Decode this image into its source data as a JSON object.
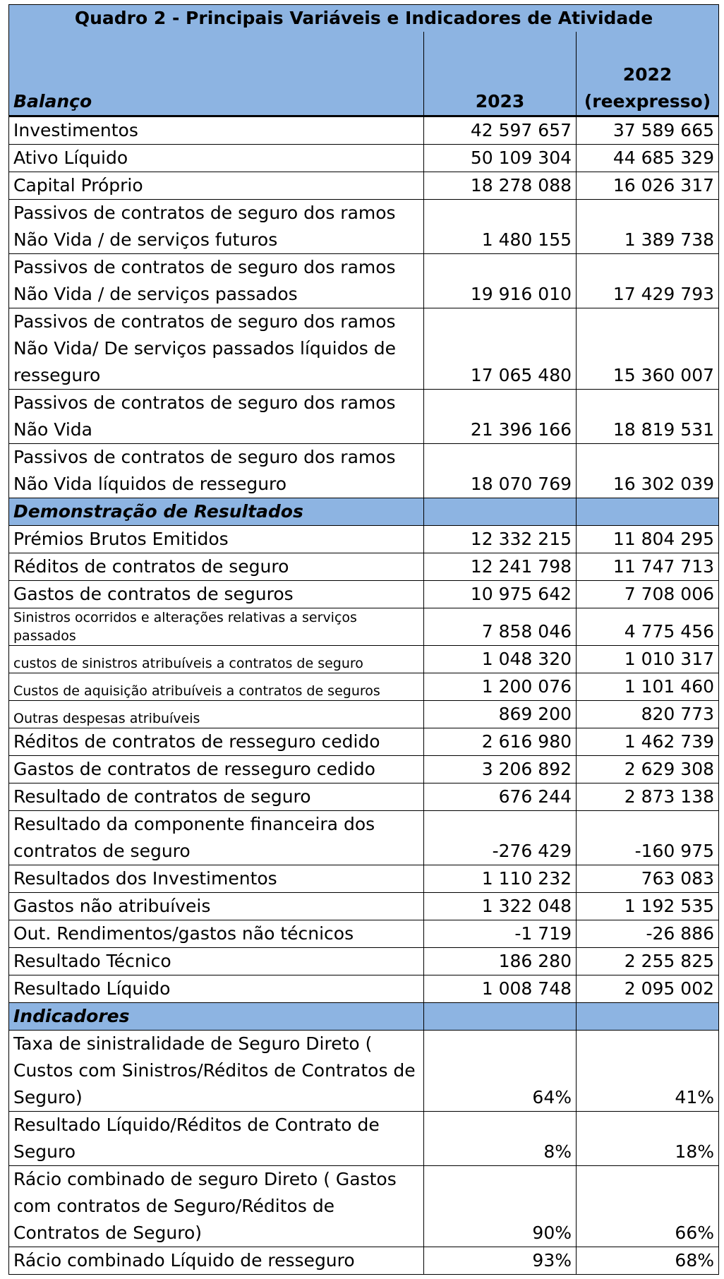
{
  "title": "Quadro 2 - Principais Variáveis e Indicadores de Atividade",
  "columns": {
    "y2023": "2023",
    "y2022_line1": "2022",
    "y2022_line2": "(reexpresso)"
  },
  "sections": {
    "balanco": "Balanço",
    "demonstracao": "Demonstração de Resultados",
    "indicadores": "Indicadores"
  },
  "balanco_rows": [
    {
      "label": "Investimentos",
      "v2023": "42 597 657",
      "v2022": "37 589 665"
    },
    {
      "label": "Ativo Líquido",
      "v2023": "50 109 304",
      "v2022": "44 685 329"
    },
    {
      "label": "Capital Próprio",
      "v2023": "18 278 088",
      "v2022": "16 026 317"
    },
    {
      "label": "Passivos de contratos de seguro dos ramos Não Vida /  de serviços futuros",
      "v2023": "1 480 155",
      "v2022": "1 389 738"
    },
    {
      "label": "Passivos de contratos de seguro dos ramos Não Vida /  de serviços passados",
      "v2023": "19 916 010",
      "v2022": "17 429 793"
    },
    {
      "label": "Passivos de contratos de seguro dos ramos Não Vida/  De serviços passados líquidos de resseguro",
      "v2023": "17 065 480",
      "v2022": "15 360 007"
    },
    {
      "label": "Passivos de contratos de seguro dos ramos Não Vida",
      "v2023": "21 396 166",
      "v2022": "18 819 531"
    },
    {
      "label": "Passivos de contratos de seguro dos ramos Não Vida líquidos de resseguro",
      "v2023": "18 070 769",
      "v2022": "16 302 039"
    }
  ],
  "demonstracao_rows": [
    {
      "label": "Prémios Brutos Emitidos",
      "v2023": "12 332 215",
      "v2022": "11 804 295"
    },
    {
      "label": "Réditos de contratos de seguro",
      "v2023": "12 241 798",
      "v2022": "11 747 713"
    },
    {
      "label": "Gastos de contratos de seguros",
      "v2023": "10 975 642",
      "v2022": "7 708 006"
    },
    {
      "label1": "Sinistros ocorridos e  alterações relativas a serviços",
      "label2": "passados",
      "v2023": "7 858 046",
      "v2022": "4 775 456"
    },
    {
      "label": "custos de sinistros atribuíveis a contratos de seguro",
      "v2023": "1 048 320",
      "v2022": "1 010 317"
    },
    {
      "label": "Custos de aquisição atribuíveis a contratos de seguros",
      "v2023": "1 200 076",
      "v2022": "1 101 460"
    },
    {
      "label": "Outras despesas atribuíveis",
      "v2023": "869 200",
      "v2022": "820 773"
    },
    {
      "label": "Réditos de contratos de resseguro cedido",
      "v2023": "2 616 980",
      "v2022": "1 462 739"
    },
    {
      "label": "Gastos de contratos de resseguro cedido",
      "v2023": "3 206 892",
      "v2022": "2 629 308"
    },
    {
      "label": "Resultado de contratos de seguro",
      "v2023": "676 244",
      "v2022": "2 873 138"
    },
    {
      "label": "Resultado da componente financeira dos contratos de seguro",
      "v2023": "-276 429",
      "v2022": "-160 975"
    },
    {
      "label": "Resultados dos Investimentos",
      "v2023": "1 110 232",
      "v2022": "763 083"
    },
    {
      "label": "Gastos não atribuíveis",
      "v2023": "1 322 048",
      "v2022": "1 192 535"
    },
    {
      "label": "Out. Rendimentos/gastos não técnicos",
      "v2023": "-1 719",
      "v2022": "-26 886"
    },
    {
      "label": "Resultado Técnico",
      "v2023": "186 280",
      "v2022": "2 255 825"
    },
    {
      "label": "Resultado Líquido",
      "v2023": "1 008 748",
      "v2022": "2 095 002"
    }
  ],
  "indicadores_rows": [
    {
      "label": "Taxa de sinistralidade de Seguro Direto ( Custos com Sinistros/Réditos de Contratos de Seguro)",
      "v2023": "64%",
      "v2022": "41%"
    },
    {
      "label": "Resultado Líquido/Réditos de Contrato de Seguro",
      "v2023": "8%",
      "v2022": "18%"
    },
    {
      "label": "Rácio combinado de seguro Direto ( Gastos com contratos de Seguro/Réditos de Contratos de Seguro)",
      "v2023": "90%",
      "v2022": "66%"
    },
    {
      "label": "Rácio combinado Líquido de resseguro",
      "v2023": "93%",
      "v2022": "68%"
    }
  ],
  "colors": {
    "header_fill": "#8db4e2",
    "border": "#000000"
  }
}
